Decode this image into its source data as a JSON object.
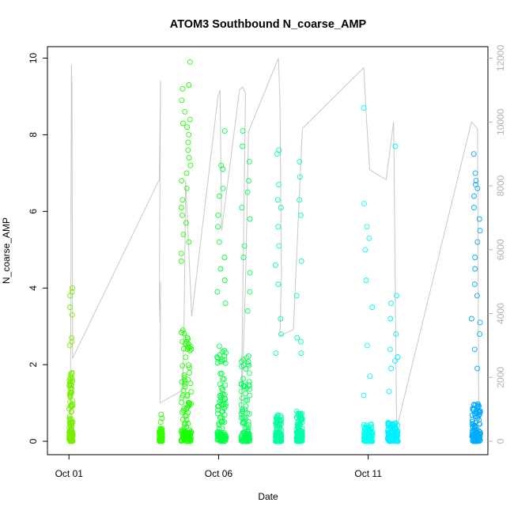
{
  "chart_data": {
    "type": "scatter",
    "title": "ATOM3 Southbound N_coarse_AMP",
    "xlabel": "Date",
    "ylabel": "N_coarse_AMP",
    "x_unit": "days since Oct 01 00:00",
    "xlim": [
      -0.72,
      14.0
    ],
    "ylim": [
      -0.35,
      10.3
    ],
    "y_ticks": [
      0,
      2,
      4,
      6,
      8,
      10
    ],
    "x_ticks": [
      {
        "label": "Oct 01",
        "value": 0
      },
      {
        "label": "Oct 06",
        "value": 5
      },
      {
        "label": "Oct 11",
        "value": 10
      }
    ],
    "right_axis": {
      "ylim": [
        -420,
        12360
      ],
      "ticks": [
        0,
        2000,
        4000,
        6000,
        8000,
        10000,
        12000
      ],
      "color": "#b0b0b0"
    },
    "grid": false,
    "legend": "none",
    "series": [
      {
        "color": "#77ee00",
        "x_start": 0.0,
        "x_end": 0.13,
        "y_low": 0.0,
        "y_bulk": 1.8,
        "y_max": 4.0,
        "peaks": [
          3.3,
          3.5,
          3.8,
          4.0,
          3.9,
          2.7,
          2.6,
          2.5
        ]
      },
      {
        "color": "#33ff00",
        "x_start": 3.02,
        "x_end": 3.12,
        "y_low": 0.0,
        "y_bulk": 0.35,
        "y_max": 0.7,
        "peaks": [
          0.7,
          0.6,
          0.5
        ]
      },
      {
        "color": "#1aff00",
        "x_start": 3.75,
        "x_end": 4.1,
        "y_low": 0.0,
        "y_bulk": 3.0,
        "y_max": 9.9,
        "peaks": [
          9.9,
          9.3,
          9.2,
          8.9,
          8.6,
          8.4,
          8.3,
          8.2,
          8.0,
          7.8,
          7.6,
          7.4,
          7.2,
          7.0,
          6.8,
          6.6,
          6.3,
          6.1,
          5.9,
          5.7,
          5.4,
          5.2,
          4.9,
          4.7
        ]
      },
      {
        "color": "#00ff40",
        "x_start": 4.95,
        "x_end": 5.25,
        "y_low": 0.0,
        "y_bulk": 2.5,
        "y_max": 8.1,
        "peaks": [
          8.1,
          7.2,
          7.1,
          6.6,
          6.4,
          5.9,
          5.6,
          5.2,
          4.8,
          4.5,
          4.2,
          3.9,
          3.6
        ]
      },
      {
        "color": "#00ff55",
        "x_start": 5.75,
        "x_end": 6.05,
        "y_low": 0.0,
        "y_bulk": 2.3,
        "y_max": 8.1,
        "peaks": [
          8.1,
          7.7,
          7.3,
          6.8,
          6.5,
          6.1,
          5.8,
          5.1,
          4.8,
          4.4,
          3.9,
          3.4
        ]
      },
      {
        "color": "#00ff99",
        "x_start": 6.9,
        "x_end": 7.1,
        "y_low": 0.0,
        "y_bulk": 0.8,
        "y_max": 7.6,
        "peaks": [
          7.6,
          7.5,
          6.7,
          6.3,
          6.1,
          5.6,
          5.1,
          4.6,
          4.1,
          3.2,
          2.8,
          2.3
        ]
      },
      {
        "color": "#00ffaa",
        "x_start": 7.6,
        "x_end": 7.8,
        "y_low": 0.0,
        "y_bulk": 0.8,
        "y_max": 7.3,
        "peaks": [
          7.3,
          6.9,
          6.3,
          5.9,
          4.7,
          3.8,
          2.7,
          2.6,
          2.3
        ]
      },
      {
        "color": "#00ffee",
        "x_start": 9.85,
        "x_end": 10.15,
        "y_low": 0.0,
        "y_bulk": 0.45,
        "y_max": 8.7,
        "peaks": [
          8.7,
          6.2,
          5.6,
          5.3,
          5.0,
          4.2,
          3.5,
          2.5,
          1.7,
          1.2
        ]
      },
      {
        "color": "#00f0ff",
        "x_start": 10.65,
        "x_end": 11.0,
        "y_low": 0.0,
        "y_bulk": 0.5,
        "y_max": 7.7,
        "peaks": [
          7.7,
          3.8,
          3.6,
          3.2,
          2.8,
          2.4,
          2.2,
          2.1,
          1.9,
          1.3
        ]
      },
      {
        "color": "#00aaff",
        "x_start": 13.45,
        "x_end": 13.75,
        "y_low": 0.0,
        "y_bulk": 1.0,
        "y_max": 7.5,
        "peaks": [
          7.5,
          7.0,
          6.8,
          6.7,
          6.6,
          6.4,
          6.1,
          5.8,
          5.5,
          5.2,
          4.8,
          4.5,
          4.1,
          3.8,
          3.2,
          3.1,
          2.8,
          2.4,
          1.9
        ]
      }
    ],
    "track_line": {
      "color": "#c8c8c8",
      "axis": "right",
      "path": [
        [
          0.05,
          2.9
        ],
        [
          0.08,
          11800
        ],
        [
          0.1,
          11100
        ],
        [
          0.12,
          2600
        ],
        [
          3.02,
          8200
        ],
        [
          3.06,
          11300
        ],
        [
          3.02,
          4500
        ],
        [
          3.04,
          3700
        ],
        [
          3.06,
          5000
        ],
        [
          3.04,
          1200
        ],
        [
          3.8,
          1600
        ],
        [
          3.85,
          3900
        ],
        [
          3.9,
          8200
        ],
        [
          4.1,
          3900
        ],
        [
          4.98,
          10800
        ],
        [
          5.05,
          11000
        ],
        [
          5.1,
          6600
        ],
        [
          5.7,
          11000
        ],
        [
          5.8,
          11100
        ],
        [
          5.9,
          10900
        ],
        [
          5.75,
          500
        ],
        [
          5.9,
          5000
        ],
        [
          6.0,
          9700
        ],
        [
          7.0,
          12000
        ],
        [
          7.05,
          10700
        ],
        [
          7.1,
          5200
        ],
        [
          7.05,
          3300
        ],
        [
          7.5,
          3500
        ],
        [
          7.8,
          9800
        ],
        [
          9.85,
          11700
        ],
        [
          9.95,
          10000
        ],
        [
          10.05,
          8500
        ],
        [
          10.6,
          8200
        ],
        [
          10.85,
          10000
        ],
        [
          10.95,
          400
        ],
        [
          13.45,
          10000
        ],
        [
          13.55,
          9900
        ],
        [
          13.65,
          9800
        ],
        [
          13.7,
          100
        ]
      ]
    }
  }
}
